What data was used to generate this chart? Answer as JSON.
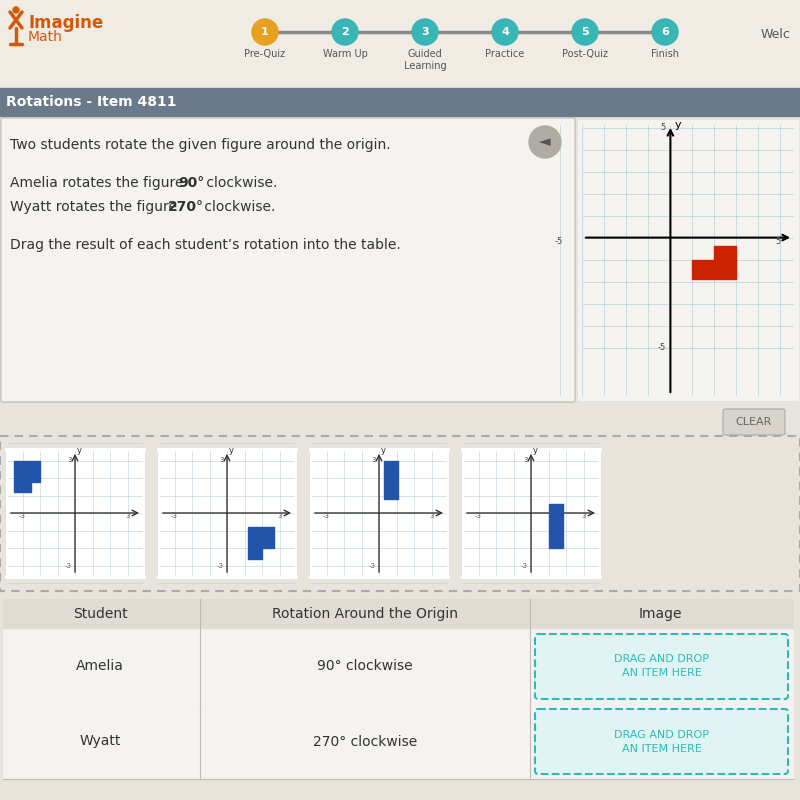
{
  "title_bar": "Rotations - Item 4811",
  "nav_steps": [
    "Pre-Quiz",
    "Warm Up",
    "Guided\nLearning",
    "Practice",
    "Post-Quiz",
    "Finish"
  ],
  "problem_line1": "Two students rotate the given figure around the origin.",
  "problem_line2a": "Amelia rotates the figure ",
  "problem_line2b": "90°",
  "problem_line2c": " clockwise.",
  "problem_line3a": "Wyatt rotates the figure ",
  "problem_line3b": "270°",
  "problem_line3c": " clockwise.",
  "problem_line4": "Drag the result of each student’s rotation into the table.",
  "table_headers": [
    "Student",
    "Rotation Around the Origin",
    "Image"
  ],
  "row1_student": "Amelia",
  "row1_rotation": "90° clockwise",
  "row2_student": "Wyatt",
  "row2_rotation": "270° clockwise",
  "drag_text1": "DRAG AND DROP",
  "drag_text2": "AN ITEM HERE",
  "bg_color": "#ddd8d0",
  "content_bg": "#e8e4dc",
  "white_area": "#f5f3ef",
  "nav_bg": "#f0ece4",
  "header_bg": "#6a7a8a",
  "orange_color": "#d4580a",
  "teal_color": "#3ab5b5",
  "yellow_color": "#e8a020",
  "drag_drop_color": "#30b8b8",
  "drag_drop_bg": "#e0f4f4",
  "grid_color": "#b8d0dc",
  "shape_blue": "#2255aa",
  "shape_red": "#cc2200",
  "text_dark": "#333333",
  "text_mid": "#555555"
}
